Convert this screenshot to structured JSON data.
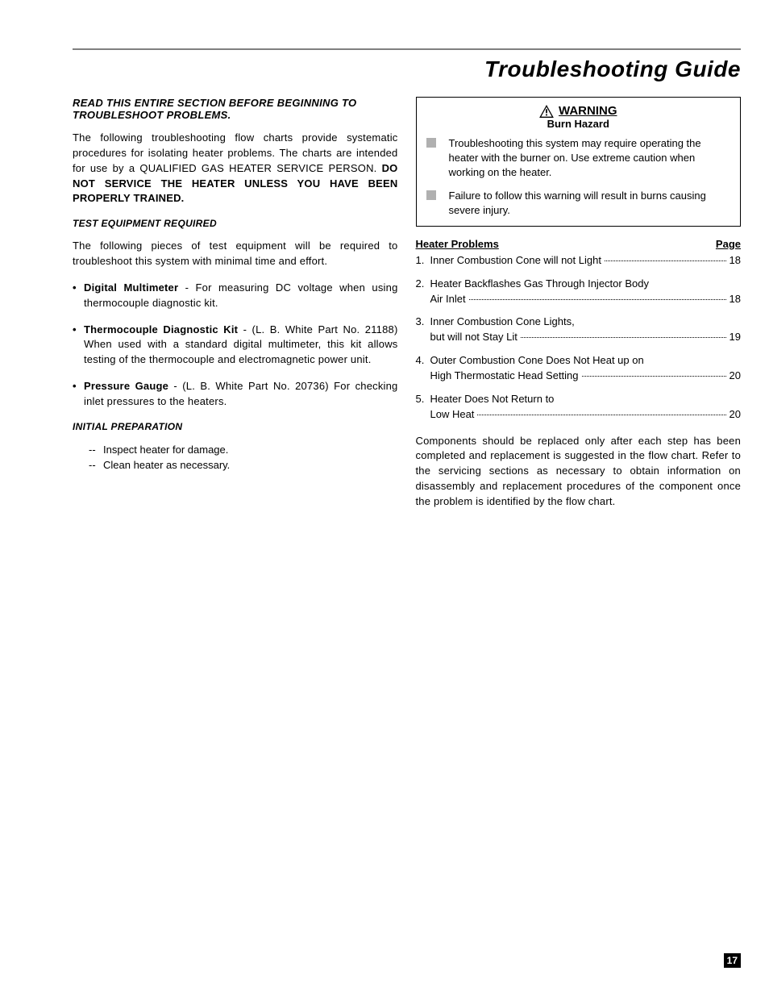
{
  "colors": {
    "rule": "#808080",
    "text": "#000000",
    "bg": "#ffffff",
    "warning_bullet": "#b0b0b0",
    "pagenum_bg": "#000000",
    "pagenum_fg": "#ffffff"
  },
  "page_title": "Troubleshooting Guide",
  "page_number": "17",
  "left": {
    "heading": "READ THIS ENTIRE SECTION BEFORE BEGINNING TO TROUBLESHOOT PROBLEMS.",
    "intro_a": "The following troubleshooting flow charts provide systematic procedures for isolating heater problems.  The charts are intended for use by a QUALIFIED GAS HEATER SERVICE PERSON.  ",
    "intro_b": "DO NOT SERVICE THE HEATER UNLESS YOU HAVE BEEN PROPERLY TRAINED.",
    "equip_heading": "TEST EQUIPMENT REQUIRED",
    "equip_intro": "The following pieces of test equipment will be required to troubleshoot this system with minimal time and effort.",
    "equip_items": [
      {
        "name": "Digital Multimeter",
        "desc": " - For measuring DC voltage when using thermocouple diagnostic kit."
      },
      {
        "name": "Thermocouple Diagnostic Kit",
        "desc": " - (L. B. White Part No. 21188)  When used with a standard digital multimeter, this kit allows testing of the thermocouple and electromagnetic power unit."
      },
      {
        "name": "Pressure Gauge",
        "desc": " - (L. B. White Part No. 20736)  For checking inlet pressures to the heaters."
      }
    ],
    "prep_heading": "INITIAL PREPARATION",
    "prep_items": [
      "Inspect heater for damage.",
      "Clean heater as necessary."
    ]
  },
  "right": {
    "warning": {
      "title": "WARNING",
      "subtitle": "Burn Hazard",
      "items": [
        "Troubleshooting this system may require operating the heater with the burner on.  Use extreme caution when working on the heater.",
        "Failure to follow this warning will result in burns causing severe injury."
      ]
    },
    "toc_header_left": "Heater Problems",
    "toc_header_right": "Page",
    "toc": [
      {
        "num": "1.",
        "lines": [
          {
            "text": "Inner Combustion Cone will not Light",
            "page": "18"
          }
        ]
      },
      {
        "num": "2.",
        "lines": [
          {
            "text": "Heater Backflashes Gas Through Injector Body"
          },
          {
            "text": "Air Inlet",
            "page": "18"
          }
        ]
      },
      {
        "num": "3.",
        "lines": [
          {
            "text": "Inner Combustion Cone Lights,"
          },
          {
            "text": "but will not Stay Lit",
            "page": "19"
          }
        ]
      },
      {
        "num": "4.",
        "lines": [
          {
            "text": "Outer Combustion Cone Does Not Heat up on"
          },
          {
            "text": "High Thermostatic Head Setting",
            "page": "20"
          }
        ]
      },
      {
        "num": "5.",
        "lines": [
          {
            "text": "Heater Does Not Return to"
          },
          {
            "text": "Low Heat",
            "page": "20"
          }
        ]
      }
    ],
    "closing": "Components should be replaced only after each step has been completed and replacement is suggested in the flow chart.  Refer to the servicing sections as necessary to obtain information on disassembly and replacement procedures of the component once the problem is identified by the flow chart."
  }
}
